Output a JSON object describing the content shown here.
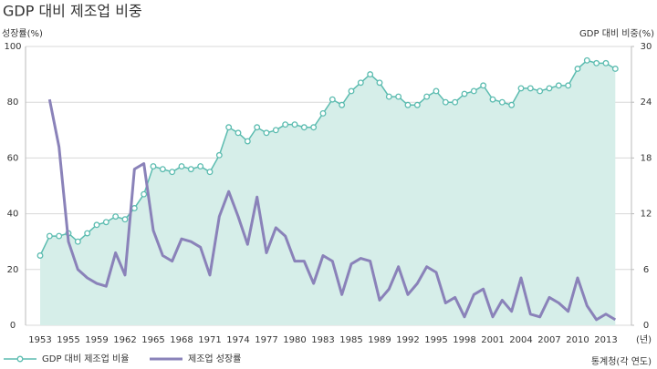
{
  "chart_data": {
    "type": "line",
    "title": "GDP 대비 제조업 비중",
    "ylabel": "성장률(%)",
    "y2label": "GDP 대비 비중(%)",
    "xlabel": "(년)",
    "source": "통계청(각 연도)",
    "categories": [
      "1953",
      null,
      null,
      "1955",
      null,
      null,
      "1959",
      null,
      null,
      "1962",
      null,
      null,
      "1965",
      null,
      null,
      "1968",
      null,
      null,
      "1971",
      null,
      null,
      "1974",
      null,
      null,
      "1977",
      null,
      null,
      "1980",
      null,
      null,
      "1983",
      null,
      null,
      "1985",
      null,
      null,
      "1989",
      null,
      null,
      "1992",
      null,
      null,
      "1995",
      null,
      null,
      "1998",
      null,
      null,
      "2001",
      null,
      null,
      "2004",
      null,
      null,
      "2007",
      null,
      null,
      "2010",
      null,
      null,
      "2013",
      null
    ],
    "ylim": [
      0,
      100
    ],
    "yticks": [
      0,
      20,
      40,
      60,
      80,
      100
    ],
    "y2lim": [
      0,
      30
    ],
    "y2ticks": [
      0,
      6,
      12,
      18,
      24,
      30
    ],
    "grid": true,
    "series": [
      {
        "name": "GDP 대비 제조업 비율",
        "color": "#5cbcb0",
        "fill": "#d6eee9",
        "axis": "y2",
        "values": [
          7.5,
          9.6,
          9.6,
          9.9,
          9,
          9.9,
          10.8,
          11.1,
          11.7,
          11.4,
          12.6,
          14.1,
          17.1,
          16.8,
          16.5,
          17.1,
          16.8,
          17.1,
          16.5,
          18.3,
          21.3,
          20.7,
          19.8,
          21.3,
          20.7,
          21,
          21.6,
          21.6,
          21.3,
          21.3,
          22.8,
          24.3,
          23.7,
          25.2,
          26.1,
          27,
          26.1,
          24.6,
          24.6,
          23.7,
          23.7,
          24.6,
          25.2,
          24,
          24,
          24.9,
          25.2,
          25.8,
          24.3,
          24,
          23.7,
          25.5,
          25.5,
          25.2,
          25.5,
          25.8,
          25.8,
          27.6,
          28.5,
          28.2,
          28.2,
          27.6
        ]
      },
      {
        "name": "제조업 성장률",
        "color": "#8a82b9",
        "values": [
          null,
          81,
          64,
          30,
          20,
          17,
          15,
          14,
          26,
          18,
          56,
          58,
          34,
          25,
          23,
          31,
          30,
          28,
          18,
          39,
          48,
          39,
          29,
          46,
          26,
          35,
          32,
          23,
          23,
          15,
          25,
          23,
          11,
          22,
          24,
          23,
          9,
          13,
          21,
          11,
          15,
          21,
          19,
          8,
          10,
          3,
          11,
          13,
          3,
          9,
          5,
          17,
          4,
          3,
          10,
          8,
          5,
          17,
          7,
          2,
          4,
          2
        ]
      }
    ]
  }
}
